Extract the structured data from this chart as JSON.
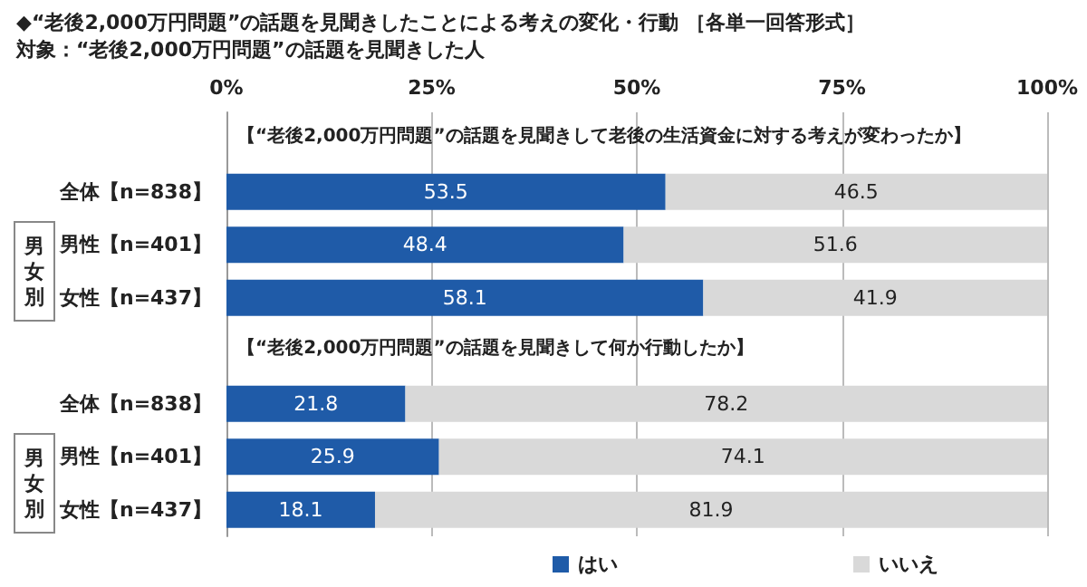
{
  "chart_data": {
    "type": "bar",
    "orientation": "horizontal",
    "stacked": true,
    "title": "◆“老後2,000万円問題”の話題を見聞きしたことによる考えの変化・行動 ［各単一回答形式］",
    "subtitle": "対象：“老後2,000万円問題”の話題を見聞きした人",
    "categories": [
      null,
      "全体【n=838】",
      "男性【n=401】",
      "女性【n=437】",
      null,
      "全体【n=838】",
      "男性【n=401】",
      "女性【n=437】"
    ],
    "series": [
      {
        "name": "はい",
        "color": "#1f5ba8",
        "values": [
          null,
          53.5,
          48.4,
          58.1,
          null,
          21.8,
          25.9,
          18.1
        ]
      },
      {
        "name": "いいえ",
        "color": "#d9d9d9",
        "values": [
          null,
          46.5,
          51.6,
          41.9,
          null,
          78.2,
          74.1,
          81.9
        ]
      }
    ],
    "xlim": [
      0,
      100
    ],
    "xticks": [
      {
        "value": 0,
        "label": "0%"
      },
      {
        "value": 25,
        "label": "25%"
      },
      {
        "value": 50,
        "label": "50%"
      },
      {
        "value": 75,
        "label": "75%"
      },
      {
        "value": 100,
        "label": "100%"
      }
    ],
    "grid": "x",
    "legend": "bottom",
    "data_labels": true,
    "annotations": [
      "【“老後2,000万円問題”の話題を見聞きして老後の生活資金に対する考えが変わったか】",
      "【“老後2,000万円問題”の話題を見聞きして何か行動したか】",
      "男女別",
      "男女別"
    ]
  }
}
